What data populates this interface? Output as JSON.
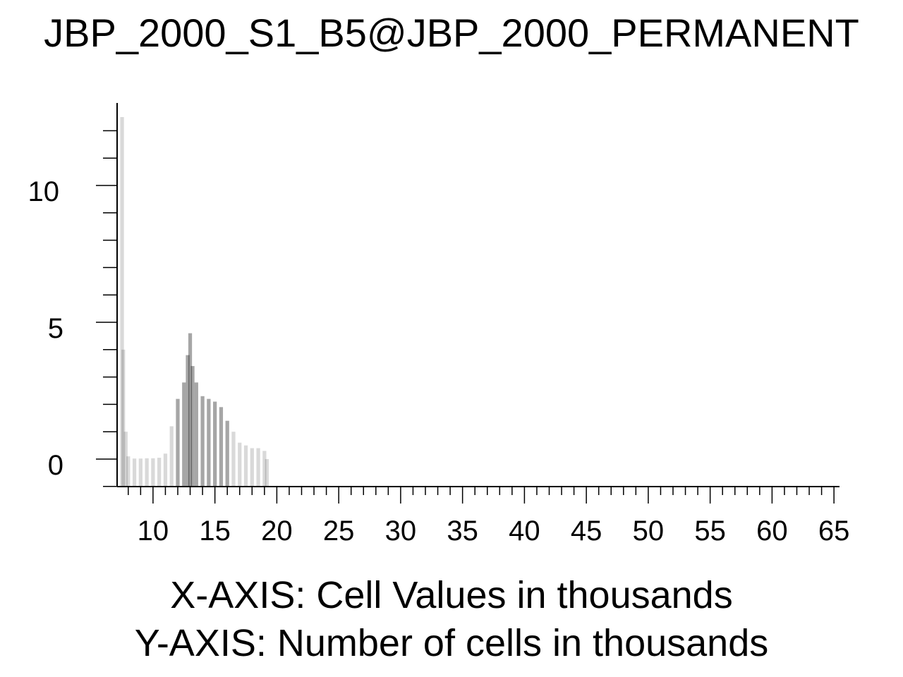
{
  "chart_data": {
    "type": "bar",
    "title": "JBP_2000_S1_B5@JBP_2000_PERMANENT",
    "xlabel": "X-AXIS: Cell Values in thousands",
    "ylabel": "Y-AXIS: Number of cells in thousands",
    "xlim": [
      7.1,
      65.1
    ],
    "ylim": [
      -1,
      13.2
    ],
    "x_major_ticks": [
      10,
      15,
      20,
      25,
      30,
      35,
      40,
      45,
      50,
      55,
      60,
      65
    ],
    "x_minor_step": 1,
    "y_major_ticks": [
      0,
      5,
      10
    ],
    "y_minor_step": 1,
    "bar_width": 0.1,
    "bar_color": "#000000",
    "histogram": {
      "x": [
        7.5,
        7.6,
        7.8,
        8.0,
        8.5,
        9.0,
        9.5,
        10.0,
        10.5,
        11.0,
        11.5,
        12.0,
        12.5,
        12.8,
        13.0,
        13.2,
        13.5,
        14.0,
        14.5,
        15.0,
        15.5,
        16.0,
        16.5,
        17.0,
        17.5,
        18.0,
        18.5,
        19.0,
        19.2
      ],
      "y": [
        12.5,
        4.0,
        1.0,
        0.1,
        0.02,
        0.02,
        0.03,
        0.03,
        0.05,
        0.2,
        1.2,
        2.2,
        2.8,
        3.8,
        4.6,
        3.4,
        2.8,
        2.3,
        2.2,
        2.1,
        1.9,
        1.4,
        1.0,
        0.6,
        0.5,
        0.4,
        0.4,
        0.3,
        0.0
      ]
    }
  }
}
